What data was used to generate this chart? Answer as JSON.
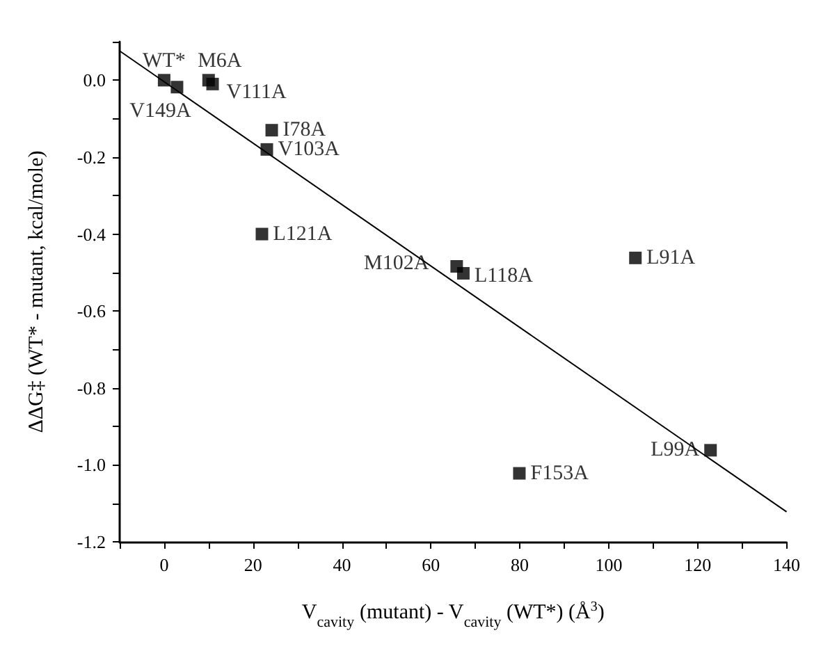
{
  "chart_data": {
    "type": "scatter",
    "xlabel": "V$_{cavity}$ (mutant) - V$_{cavity}$ (WT*) (Å$^{3}$)",
    "ylabel": "ΔΔG‡ (WT* - mutant, kcal/mole)",
    "marker": "square",
    "grid": false,
    "xlim": [
      -10,
      140
    ],
    "xticks": [
      {
        "value": -10,
        "label": null
      },
      0,
      {
        "value": 10,
        "label": null
      },
      20,
      {
        "value": 30,
        "label": null
      },
      40,
      {
        "value": 50,
        "label": null
      },
      60,
      {
        "value": 70,
        "label": null
      },
      80,
      {
        "value": 90,
        "label": null
      },
      100,
      {
        "value": 110,
        "label": null
      },
      120,
      {
        "value": 130,
        "label": null
      },
      140
    ],
    "ylim": [
      -1.2,
      0.1
    ],
    "yticks": [
      -1.2,
      {
        "value": -1.1,
        "label": null
      },
      {
        "value": -1.0,
        "label": "-1.0"
      },
      {
        "value": -0.9,
        "label": null
      },
      -0.8,
      {
        "value": -0.7,
        "label": null
      },
      -0.6,
      {
        "value": -0.5,
        "label": null
      },
      -0.4,
      {
        "value": -0.3,
        "label": null
      },
      -0.2,
      {
        "value": -0.1,
        "label": null
      },
      {
        "value": 0,
        "label": "0.0"
      },
      {
        "value": 0.1,
        "label": null
      }
    ],
    "series": [
      {
        "color": "#000000",
        "x": [
          0,
          2.9,
          10,
          10.9,
          24.2,
          23.1,
          22,
          65.8,
          67.3,
          106,
          79.9,
          122.9
        ],
        "values": [
          0,
          -0.018,
          0,
          -0.01,
          -0.13,
          -0.18,
          -0.4,
          -0.484,
          -0.502,
          -0.462,
          -1.022,
          -0.962
        ]
      },
      {
        "type": "line",
        "color": "#000000",
        "marker": "none",
        "x": [
          -10,
          140
        ],
        "values": [
          0.076,
          -1.122
        ]
      }
    ],
    "annotations": [
      {
        "text": "WT*",
        "x": 0,
        "y": 0
      },
      {
        "text": "V149A",
        "x": 2.9,
        "y": -0.018
      },
      {
        "text": "M6A",
        "x": 10,
        "y": 0
      },
      {
        "text": "V111A",
        "x": 10.9,
        "y": -0.01
      },
      {
        "text": "I78A",
        "x": 24.2,
        "y": -0.13
      },
      {
        "text": "V103A",
        "x": 23.1,
        "y": -0.18
      },
      {
        "text": "L121A",
        "x": 22,
        "y": -0.4
      },
      {
        "text": "M102A",
        "x": 65.8,
        "y": -0.484
      },
      {
        "text": "L118A",
        "x": 67.3,
        "y": -0.502
      },
      {
        "text": "L91A",
        "x": 106,
        "y": -0.462
      },
      {
        "text": "F153A",
        "x": 79.9,
        "y": -1.022
      },
      {
        "text": "L99A",
        "x": 122.9,
        "y": -0.962
      }
    ]
  }
}
